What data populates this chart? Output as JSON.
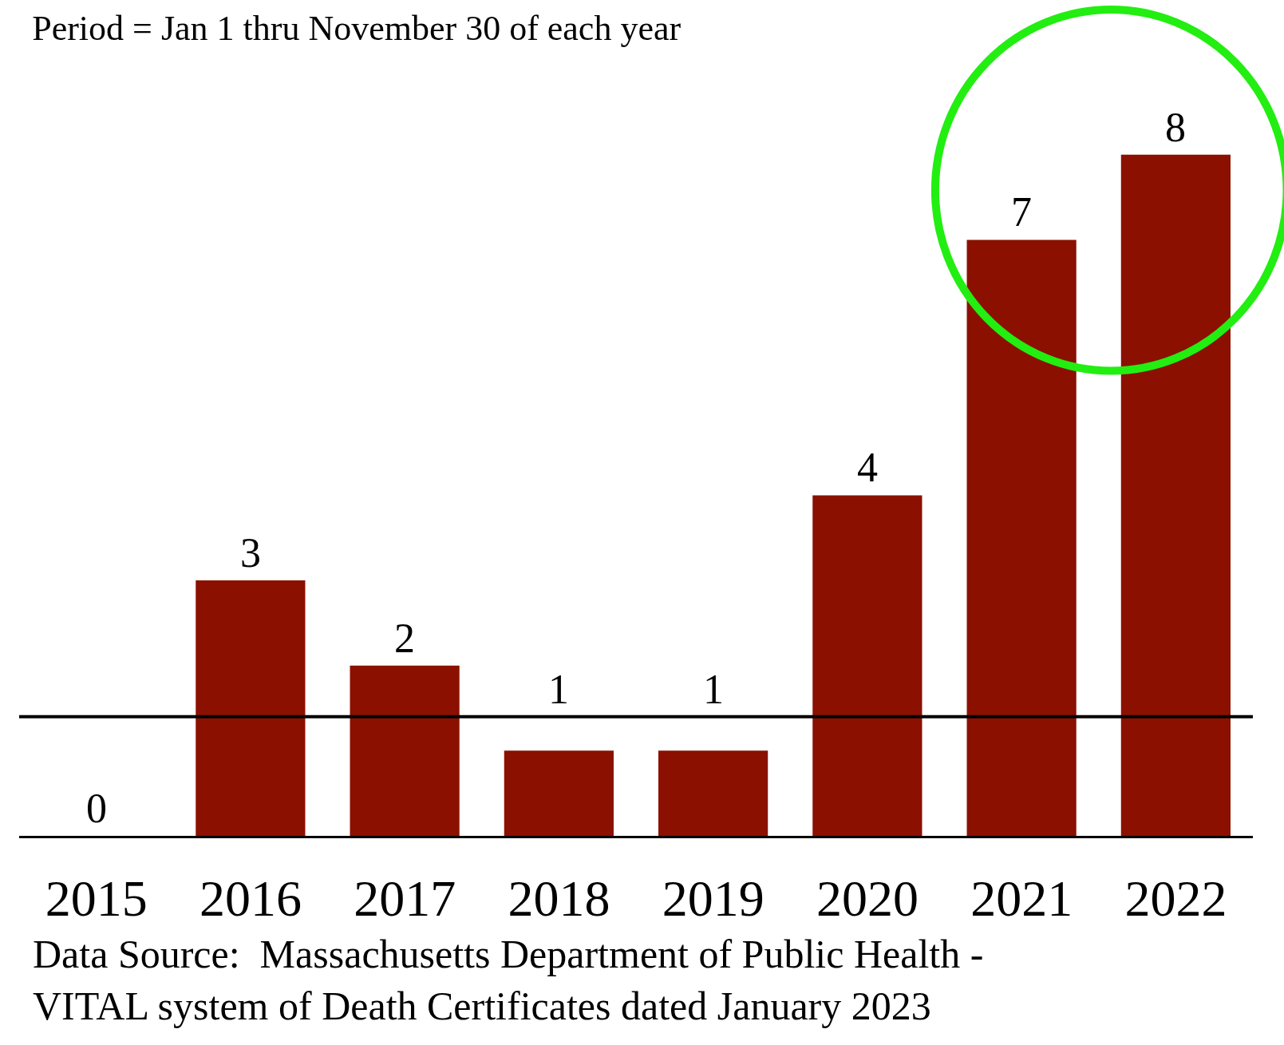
{
  "chart_data": {
    "type": "bar",
    "title": "Period = Jan 1 thru November 30 of each year",
    "categories": [
      "2015",
      "2016",
      "2017",
      "2018",
      "2019",
      "2020",
      "2021",
      "2022"
    ],
    "values": [
      0,
      3,
      2,
      1,
      1,
      4,
      7,
      8
    ],
    "color": "#8b1000",
    "data_labels": true,
    "ref_lines": [
      {
        "axis": "y",
        "value": 1.4,
        "color": "#000000"
      }
    ],
    "annotations": [
      "Data Source:  Massachusetts Department of Public Health -\nVITAL system of Death Certificates dated January 2023"
    ]
  }
}
